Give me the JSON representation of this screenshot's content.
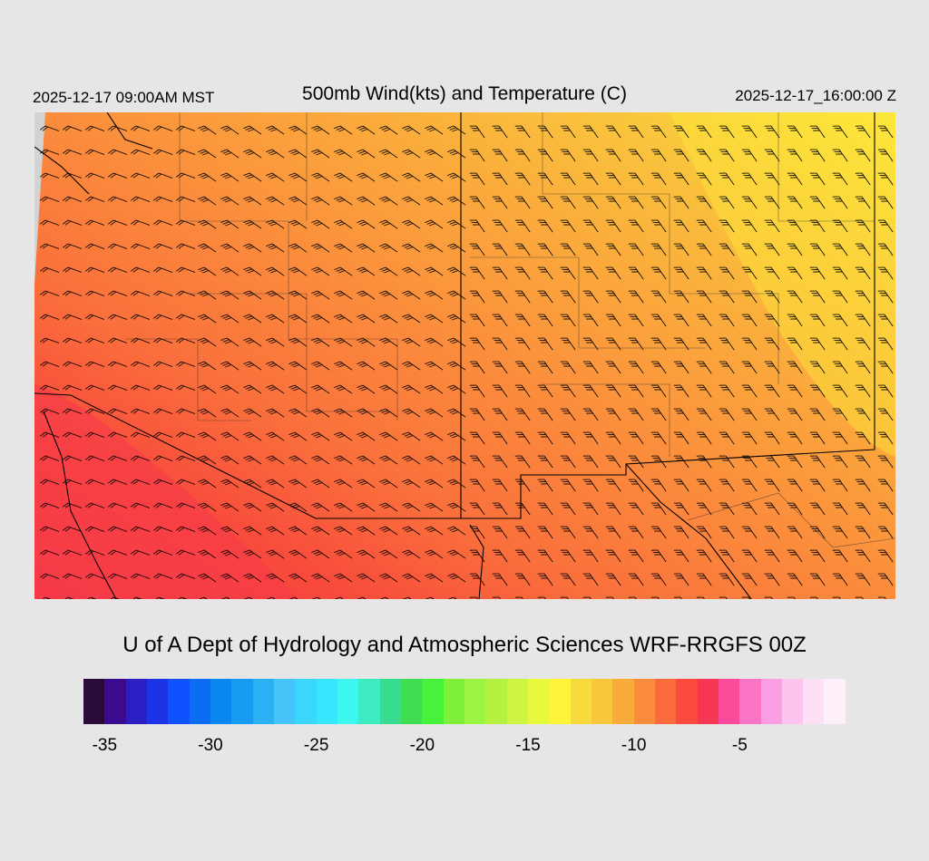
{
  "header": {
    "valid_local": "2025-12-17 09:00AM MST",
    "title": "500mb Wind(kts) and Temperature (C)",
    "valid_utc": "2025-12-17_16:00:00 Z"
  },
  "credit": "U of A Dept of Hydrology and Atmospheric Sciences WRF-RRGFS 00Z",
  "colorbar": {
    "colors": [
      "#2a0a3a",
      "#3b0a8f",
      "#2b1fc4",
      "#1d33e6",
      "#0f52ff",
      "#0a6ef5",
      "#0a86f0",
      "#159cf2",
      "#2cb0f5",
      "#44c4f8",
      "#3ad6fb",
      "#38e6ff",
      "#3cf7f0",
      "#3cebc0",
      "#38dd90",
      "#3edd52",
      "#46f23a",
      "#7ef03a",
      "#9cf542",
      "#b6f142",
      "#cef542",
      "#e8f93d",
      "#fff43a",
      "#f9da3c",
      "#f9c63c",
      "#fbaa3c",
      "#fb8c3c",
      "#fa6a3c",
      "#fa4a3c",
      "#f73554",
      "#fa4a9a",
      "#fc74c4",
      "#fb9ee6",
      "#fcc4ef",
      "#fde0f6",
      "#fdf0fa"
    ],
    "tick_labels": [
      "-35",
      "-30",
      "-25",
      "-20",
      "-15",
      "-10",
      "-5"
    ]
  },
  "map": {
    "field": "500mb temperature",
    "barb_color": "#000000",
    "border_color": "#000000"
  }
}
